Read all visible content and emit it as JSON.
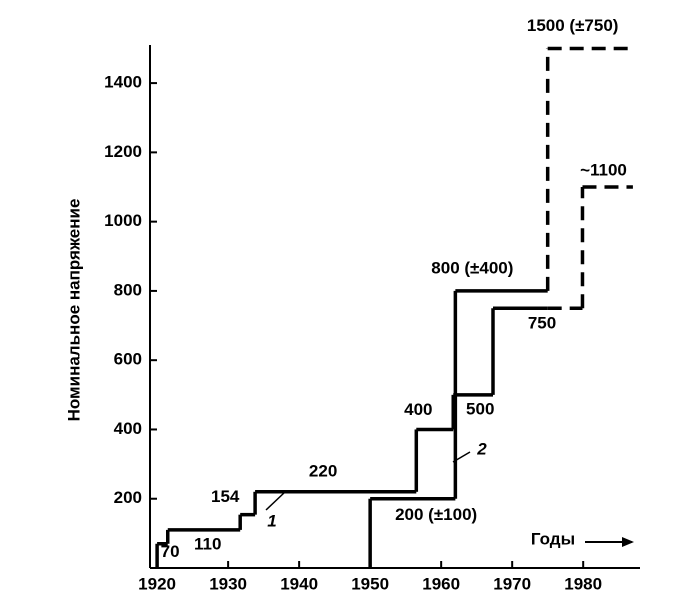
{
  "chart_data": {
    "type": "step",
    "x_label": "Годы",
    "y_label": "Номинальное напряжение",
    "xlim": [
      1919,
      1988
    ],
    "ylim": [
      0,
      1510
    ],
    "xticks": [
      1920,
      1930,
      1940,
      1950,
      1960,
      1970,
      1980
    ],
    "yticks": [
      200,
      400,
      600,
      800,
      1000,
      1200,
      1400
    ],
    "color": "#000000",
    "series": [
      {
        "name": "1",
        "x": [
          1920,
          1921.5,
          1931.7,
          1933.8,
          1956.5,
          1961.7,
          1967.3,
          1979.9
        ],
        "values": [
          70,
          110,
          154,
          220,
          400,
          500,
          750,
          1100
        ],
        "value_labels": [
          "70",
          "110",
          "154",
          "220",
          "400",
          "500",
          "750",
          "~1100"
        ],
        "x_end": 1987,
        "dashed_from": 1975
      },
      {
        "name": "2",
        "x": [
          1950,
          1962,
          1975
        ],
        "values": [
          200,
          800,
          1500
        ],
        "value_labels": [
          "200 (±100)",
          "800 (±400)",
          "1500 (±750)"
        ],
        "x_end": 1987,
        "dashed_from": 1975
      }
    ]
  }
}
